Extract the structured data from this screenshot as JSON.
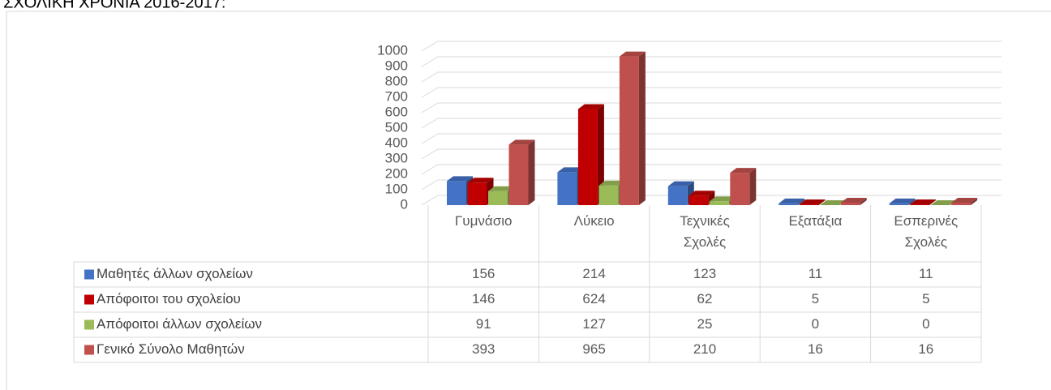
{
  "chart_data": {
    "type": "bar3d",
    "title": "ΣΧΟΛΙΚΗ ΧΡΟΝΙΑ 2016-2017:",
    "categories": [
      "Γυμνάσιο",
      "Λύκειο",
      "Τεχνικές Σχολές",
      "Εξατάξια",
      "Εσπερινές Σχολές"
    ],
    "series": [
      {
        "name": "Μαθητές άλλων σχολείων",
        "color": "#4472c4",
        "values": [
          156,
          214,
          123,
          11,
          11
        ]
      },
      {
        "name": "Απόφοιτοι του σχολείου",
        "color": "#c00000",
        "values": [
          146,
          624,
          62,
          5,
          5
        ]
      },
      {
        "name": "Απόφοιτοι άλλων σχολείων",
        "color": "#9bbb59",
        "values": [
          91,
          127,
          25,
          0,
          0
        ]
      },
      {
        "name": "Γενικό Σύνολο Μαθητών",
        "color": "#c0504d",
        "values": [
          393,
          965,
          210,
          16,
          16
        ]
      }
    ],
    "ylim": [
      0,
      1000
    ],
    "yticks": [
      0,
      100,
      200,
      300,
      400,
      500,
      600,
      700,
      800,
      900,
      1000
    ],
    "grid": true,
    "data_table": true
  }
}
